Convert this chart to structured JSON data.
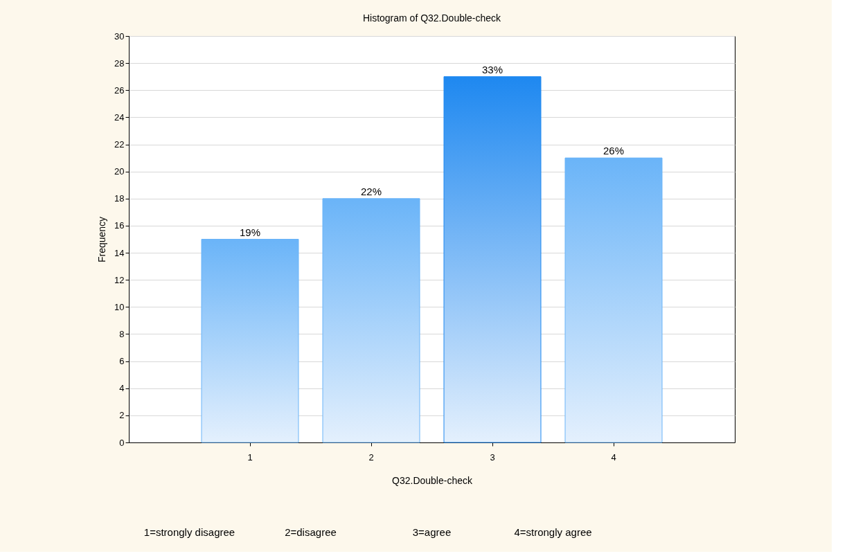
{
  "chart_data": {
    "type": "bar",
    "title": "Histogram of Q32.Double-check",
    "xlabel": "Q32.Double-check",
    "ylabel": "Frequency",
    "categories": [
      "1",
      "2",
      "3",
      "4"
    ],
    "values": [
      15,
      18,
      27,
      21
    ],
    "colors": [
      "#6ab4f8",
      "#6ab4f8",
      "#1e88f0",
      "#6ab4f8"
    ],
    "ylim": [
      0,
      30
    ],
    "yticks": [
      0,
      2,
      4,
      6,
      8,
      10,
      12,
      14,
      16,
      18,
      20,
      22,
      24,
      26,
      28,
      30
    ],
    "grid": "y",
    "annotations": [
      {
        "text": "19%",
        "x": "1",
        "y": 15
      },
      {
        "text": "22%",
        "x": "2",
        "y": 18
      },
      {
        "text": "33%",
        "x": "3",
        "y": 27
      },
      {
        "text": "26%",
        "x": "4",
        "y": 21
      },
      "1=strongly disagree",
      "2=disagree",
      "3=agree",
      "4=strongly agree"
    ]
  }
}
